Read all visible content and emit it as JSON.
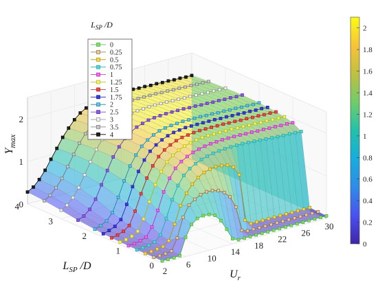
{
  "chart_data": {
    "type": "surface3d",
    "title": "",
    "xlabel": "U",
    "xlabel_sub": "r",
    "ylabel": "L",
    "ylabel_sub": "SP",
    "ylabel_suffix": " /D",
    "zlabel": "Y",
    "zlabel_sub": "max",
    "x_ticks": [
      "2",
      "6",
      "10",
      "14",
      "18",
      "22",
      "26",
      "30"
    ],
    "y_ticks": [
      "0",
      "1",
      "2",
      "3",
      "4"
    ],
    "z_ticks": [
      "0",
      "1",
      "2"
    ],
    "xlim": [
      2,
      30
    ],
    "ylim": [
      0,
      4
    ],
    "zlim": [
      0,
      2.2
    ],
    "grid": true,
    "legend": {
      "title": "L",
      "title_sub": "SP",
      "title_suffix": " /D",
      "placement": "top-left",
      "entries": [
        {
          "label": "0",
          "color": "#3bb43b",
          "marker_fill": "#8fd66a"
        },
        {
          "label": "0.25",
          "color": "#8a6d3b",
          "marker_fill": "#e8c9a0"
        },
        {
          "label": "0.5",
          "color": "#b38f00",
          "marker_fill": "#f2d94a"
        },
        {
          "label": "0.75",
          "color": "#1aa6a6",
          "marker_fill": "#5fd1d1"
        },
        {
          "label": "1",
          "color": "#c41ec4",
          "marker_fill": "#e56ee5"
        },
        {
          "label": "1.25",
          "color": "#b5b500",
          "marker_fill": "#f0f07a"
        },
        {
          "label": "1.5",
          "color": "#b01818",
          "marker_fill": "#e84a4a"
        },
        {
          "label": "1.75",
          "color": "#1a1ab0",
          "marker_fill": "#3a3ad6"
        },
        {
          "label": "2",
          "color": "#1a7fa6",
          "marker_fill": "#5fc4e6"
        },
        {
          "label": "2.5",
          "color": "#5a2ab0",
          "marker_fill": "#8a5ae0"
        },
        {
          "label": "3",
          "color": "#8a8a8a",
          "marker_fill": "#f2f2f2"
        },
        {
          "label": "3.5",
          "color": "#707070",
          "marker_fill": "#c8c8c8"
        },
        {
          "label": "4",
          "color": "#000000",
          "marker_fill": "#202020"
        }
      ]
    },
    "colorbar": {
      "ticks": [
        "0",
        "0.2",
        "0.4",
        "0.6",
        "0.8",
        "1",
        "1.2",
        "1.4",
        "1.6",
        "1.8",
        "2"
      ],
      "range": [
        0,
        2.1
      ],
      "colormap": [
        "#3e26a8",
        "#4a4ff0",
        "#2f8ce8",
        "#17aedc",
        "#22c1aa",
        "#6dcc6c",
        "#c0c040",
        "#f6c23a",
        "#f9fb15"
      ]
    },
    "series": [
      {
        "name": "0",
        "y_pos": 0,
        "values": [
          0.05,
          0.05,
          0.05,
          0.06,
          0.45,
          0.72,
          0.82,
          0.85,
          0.84,
          0.78,
          0.62,
          0.38,
          0.12,
          0.06,
          0.06,
          0.06,
          0.06,
          0.06,
          0.06,
          0.06,
          0.06,
          0.06,
          0.06,
          0.06,
          0.06,
          0.06,
          0.06,
          0.06,
          0.06
        ]
      },
      {
        "name": "0.25",
        "y_pos": 0.25,
        "values": [
          0.05,
          0.05,
          0.06,
          0.08,
          0.35,
          0.8,
          1.05,
          1.15,
          1.22,
          1.25,
          1.24,
          1.2,
          1.12,
          0.98,
          0.7,
          0.12,
          0.07,
          0.07,
          0.07,
          0.07,
          0.07,
          0.07,
          0.07,
          0.07,
          0.07,
          0.07,
          0.07,
          0.07,
          0.07
        ]
      },
      {
        "name": "0.5",
        "y_pos": 0.5,
        "values": [
          0.05,
          0.06,
          0.08,
          0.1,
          0.2,
          0.55,
          0.95,
          1.2,
          1.38,
          1.5,
          1.58,
          1.62,
          1.64,
          1.63,
          1.6,
          1.52,
          1.3,
          0.2,
          0.08,
          0.08,
          0.08,
          0.08,
          0.08,
          0.08,
          0.08,
          0.08,
          0.08,
          0.08,
          0.08
        ]
      },
      {
        "name": "0.75",
        "y_pos": 0.75,
        "values": [
          0.05,
          0.06,
          0.08,
          0.12,
          0.25,
          0.6,
          1.0,
          1.3,
          1.5,
          1.62,
          1.7,
          1.76,
          1.8,
          1.83,
          1.85,
          1.86,
          1.87,
          1.87,
          1.87,
          1.86,
          1.85,
          1.84,
          1.83,
          1.82,
          1.81,
          1.8,
          1.8,
          1.79,
          1.78
        ]
      },
      {
        "name": "1",
        "y_pos": 1,
        "values": [
          0.06,
          0.07,
          0.1,
          0.15,
          0.35,
          0.7,
          1.1,
          1.38,
          1.58,
          1.7,
          1.78,
          1.84,
          1.88,
          1.91,
          1.93,
          1.94,
          1.95,
          1.95,
          1.95,
          1.95,
          1.94,
          1.94,
          1.93,
          1.93,
          1.92,
          1.92,
          1.91,
          1.91,
          1.9
        ]
      },
      {
        "name": "1.25",
        "y_pos": 1.25,
        "values": [
          0.06,
          0.08,
          0.12,
          0.2,
          0.45,
          0.82,
          1.18,
          1.45,
          1.64,
          1.76,
          1.84,
          1.9,
          1.94,
          1.97,
          1.99,
          2.0,
          2.0,
          2.0,
          2.0,
          2.0,
          1.99,
          1.99,
          1.98,
          1.98,
          1.97,
          1.97,
          1.96,
          1.96,
          1.95
        ]
      },
      {
        "name": "1.5",
        "y_pos": 1.5,
        "values": [
          0.07,
          0.1,
          0.15,
          0.25,
          0.55,
          0.92,
          1.25,
          1.5,
          1.68,
          1.8,
          1.88,
          1.94,
          1.98,
          2.0,
          2.02,
          2.03,
          2.03,
          2.03,
          2.03,
          2.03,
          2.02,
          2.02,
          2.01,
          2.01,
          2.0,
          2.0,
          1.99,
          1.99,
          1.98
        ]
      },
      {
        "name": "1.75",
        "y_pos": 1.75,
        "values": [
          0.08,
          0.12,
          0.18,
          0.3,
          0.62,
          1.0,
          1.32,
          1.55,
          1.72,
          1.83,
          1.91,
          1.97,
          2.01,
          2.03,
          2.05,
          2.05,
          2.05,
          2.05,
          2.05,
          2.05,
          2.04,
          2.04,
          2.03,
          2.03,
          2.02,
          2.02,
          2.01,
          2.01,
          2.0
        ]
      },
      {
        "name": "2",
        "y_pos": 2,
        "values": [
          0.1,
          0.15,
          0.22,
          0.38,
          0.7,
          1.05,
          1.36,
          1.58,
          1.75,
          1.86,
          1.94,
          2.0,
          2.03,
          2.05,
          2.06,
          2.07,
          2.07,
          2.07,
          2.07,
          2.06,
          2.06,
          2.05,
          2.05,
          2.04,
          2.04,
          2.03,
          2.03,
          2.02,
          2.02
        ]
      },
      {
        "name": "2.5",
        "y_pos": 2.5,
        "values": [
          0.14,
          0.2,
          0.32,
          0.52,
          0.82,
          1.12,
          1.4,
          1.6,
          1.76,
          1.87,
          1.95,
          2.0,
          2.04,
          2.06,
          2.07,
          2.08,
          2.08,
          2.08,
          2.08,
          2.07,
          2.07,
          2.06,
          2.06,
          2.05,
          2.05,
          2.04,
          2.04,
          2.03,
          2.03
        ]
      },
      {
        "name": "3",
        "y_pos": 3,
        "values": [
          0.2,
          0.28,
          0.42,
          0.62,
          0.88,
          1.15,
          1.4,
          1.6,
          1.75,
          1.86,
          1.94,
          1.99,
          2.03,
          2.05,
          2.06,
          2.07,
          2.07,
          2.07,
          2.07,
          2.06,
          2.06,
          2.05,
          2.05,
          2.04,
          2.04,
          2.03,
          2.03,
          2.02,
          2.02
        ]
      },
      {
        "name": "3.5",
        "y_pos": 3.5,
        "values": [
          0.25,
          0.34,
          0.48,
          0.66,
          0.9,
          1.15,
          1.38,
          1.56,
          1.72,
          1.83,
          1.91,
          1.97,
          2.01,
          2.03,
          2.05,
          2.05,
          2.05,
          2.05,
          2.05,
          2.05,
          2.04,
          2.04,
          2.03,
          2.03,
          2.02,
          2.02,
          2.01,
          2.01,
          2.0
        ]
      },
      {
        "name": "4",
        "y_pos": 4,
        "values": [
          0.28,
          0.36,
          0.5,
          0.68,
          0.9,
          1.12,
          1.34,
          1.52,
          1.68,
          1.8,
          1.88,
          1.94,
          1.98,
          2.0,
          2.02,
          2.02,
          2.02,
          2.02,
          2.02,
          2.01,
          2.01,
          2.0,
          2.0,
          1.99,
          1.99,
          1.98,
          1.98,
          1.97,
          1.97
        ]
      }
    ]
  }
}
